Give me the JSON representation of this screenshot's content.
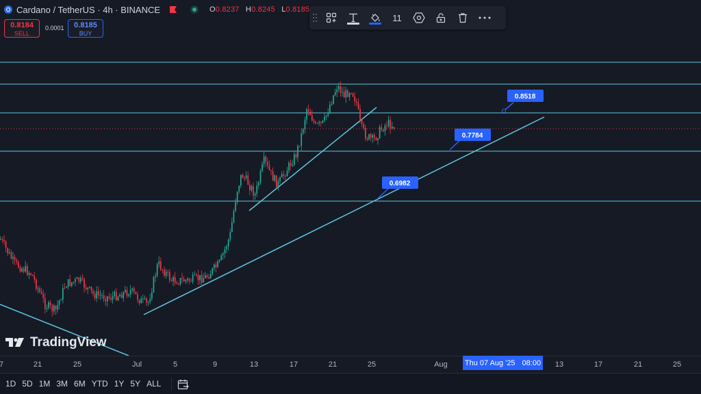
{
  "header": {
    "symbol": "Cardano / TetherUS · 4h · BINANCE",
    "ohlc": [
      {
        "key": "O",
        "value": "0.8237"
      },
      {
        "key": "H",
        "value": "0.8245"
      },
      {
        "key": "L",
        "value": "0.8185"
      },
      {
        "key": "C",
        "value": ""
      }
    ],
    "colors": {
      "down": "#f23645",
      "up": "#22ab94",
      "accent": "#2962ff"
    }
  },
  "trade": {
    "sell_price": "0.8184",
    "sell_label": "SELL",
    "spread": "0.0001",
    "buy_price": "0.8185",
    "buy_label": "BUY"
  },
  "drawing_toolbar": {
    "items": [
      {
        "icon": "drag-handle-icon"
      },
      {
        "icon": "object-tree-icon"
      },
      {
        "icon": "text-tool-icon"
      },
      {
        "icon": "paint-bucket-icon"
      },
      {
        "icon": "font-size-value",
        "label": "11"
      },
      {
        "icon": "settings-hexagon-icon"
      },
      {
        "icon": "unlock-icon"
      },
      {
        "icon": "trash-icon"
      },
      {
        "icon": "more-icon"
      }
    ]
  },
  "price_callouts": [
    {
      "label": "0.8518"
    },
    {
      "label": "0.7784"
    },
    {
      "label": "0.6982"
    }
  ],
  "watermark": "TradingView",
  "time_axis": {
    "ticks": [
      "7",
      "21",
      "25",
      "Jul",
      "5",
      "9",
      "13",
      "17",
      "21",
      "25",
      "Aug",
      "13",
      "17",
      "21",
      "25"
    ],
    "crosshair_date": "Thu 07 Aug '25",
    "crosshair_time": "08:00"
  },
  "ranges": [
    "1D",
    "5D",
    "1M",
    "3M",
    "6M",
    "YTD",
    "1Y",
    "5Y",
    "ALL"
  ]
}
